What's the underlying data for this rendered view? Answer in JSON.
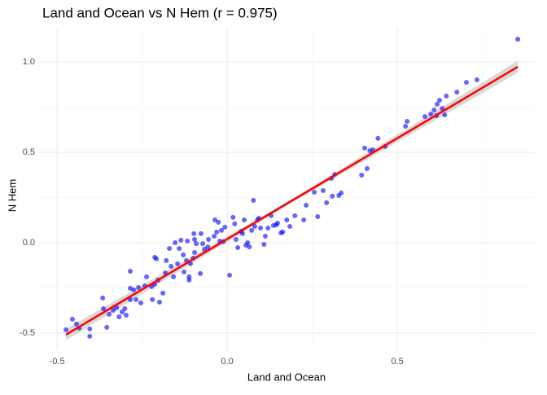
{
  "chart_data": {
    "type": "scatter",
    "title": "Land and Ocean vs N Hem (r = 0.975)",
    "x_label": "Land and Ocean",
    "y_label": "N Hem",
    "xlim": [
      -0.553,
      0.904
    ],
    "ylim": [
      -0.595,
      1.194
    ],
    "xticks": [
      -0.5,
      {
        "value": 0,
        "label": "0.0"
      },
      0.5
    ],
    "yticks": [
      -0.5,
      {
        "value": 0,
        "label": "0.0"
      },
      0.5,
      {
        "value": 1,
        "label": "1.0"
      }
    ],
    "xminor": [
      -0.25,
      0.25,
      0.75
    ],
    "yminor": [
      -0.25,
      0.25,
      0.75
    ],
    "grid": true,
    "color": "#0000ff",
    "x": [
      -0.474,
      -0.455,
      -0.443,
      -0.435,
      -0.404,
      -0.404,
      -0.366,
      -0.364,
      -0.354,
      -0.347,
      -0.335,
      -0.325,
      -0.318,
      -0.309,
      -0.301,
      -0.297,
      -0.285,
      -0.285,
      -0.285,
      -0.275,
      -0.268,
      -0.261,
      -0.254,
      -0.242,
      -0.237,
      -0.222,
      -0.22,
      -0.213,
      -0.213,
      -0.208,
      -0.203,
      -0.199,
      -0.189,
      -0.182,
      -0.179,
      -0.17,
      -0.165,
      -0.158,
      -0.153,
      -0.146,
      -0.141,
      -0.136,
      -0.129,
      -0.127,
      -0.12,
      -0.117,
      -0.112,
      -0.112,
      -0.108,
      -0.1,
      -0.098,
      -0.096,
      -0.096,
      -0.091,
      -0.079,
      -0.077,
      -0.072,
      -0.067,
      -0.057,
      -0.055,
      -0.038,
      -0.036,
      -0.031,
      -0.026,
      -0.022,
      -0.017,
      -0.012,
      -0.007,
      0.007,
      0.017,
      0.022,
      0.026,
      0.031,
      0.041,
      0.045,
      0.05,
      0.055,
      0.06,
      0.065,
      0.072,
      0.077,
      0.081,
      0.089,
      0.093,
      0.098,
      0.108,
      0.112,
      0.12,
      0.129,
      0.136,
      0.144,
      0.148,
      0.158,
      0.163,
      0.175,
      0.184,
      0.199,
      0.225,
      0.232,
      0.256,
      0.266,
      0.282,
      0.292,
      0.306,
      0.309,
      0.316,
      0.328,
      0.335,
      0.395,
      0.404,
      0.411,
      0.419,
      0.428,
      0.443,
      0.464,
      0.524,
      0.529,
      0.581,
      0.598,
      0.608,
      0.615,
      0.617,
      0.624,
      0.632,
      0.639,
      0.644,
      0.675,
      0.703,
      0.734,
      0.854
    ],
    "values": [
      -0.482,
      -0.423,
      -0.45,
      -0.473,
      -0.477,
      -0.518,
      -0.306,
      -0.365,
      -0.468,
      -0.396,
      -0.374,
      -0.36,
      -0.41,
      -0.383,
      -0.365,
      -0.401,
      -0.158,
      -0.252,
      -0.315,
      -0.261,
      -0.315,
      -0.248,
      -0.333,
      -0.239,
      -0.189,
      -0.243,
      -0.315,
      -0.23,
      -0.081,
      -0.09,
      -0.207,
      -0.329,
      -0.279,
      -0.167,
      -0.099,
      -0.032,
      -0.131,
      -0.189,
      0.0,
      -0.117,
      -0.032,
      0.014,
      -0.068,
      -0.162,
      -0.099,
      0.009,
      -0.207,
      -0.189,
      -0.117,
      -0.086,
      0.05,
      -0.054,
      0.018,
      -0.005,
      -0.171,
      0.05,
      -0.005,
      -0.036,
      -0.023,
      0.018,
      0.036,
      0.126,
      0.059,
      0.113,
      0.009,
      0.068,
      0.005,
      0.086,
      -0.18,
      0.14,
      0.104,
      0.018,
      -0.027,
      0.063,
      0.05,
      0.126,
      -0.014,
      0.0,
      -0.023,
      0.068,
      0.234,
      0.09,
      0.126,
      0.135,
      0.081,
      -0.009,
      0.036,
      0.081,
      0.149,
      0.095,
      0.099,
      0.108,
      0.054,
      0.059,
      0.126,
      0.09,
      0.149,
      0.126,
      0.207,
      0.279,
      0.144,
      0.288,
      0.221,
      0.356,
      0.257,
      0.378,
      0.261,
      0.275,
      0.374,
      0.523,
      0.41,
      0.509,
      0.514,
      0.577,
      0.532,
      0.644,
      0.671,
      0.698,
      0.712,
      0.734,
      0.703,
      0.766,
      0.788,
      0.743,
      0.707,
      0.811,
      0.833,
      0.887,
      0.901,
      1.126
    ],
    "fit": {
      "color": "#ff0000",
      "band_color": "#bebebe",
      "x": [
        -0.474,
        0.19,
        0.854
      ],
      "y": [
        -0.509,
        0.232,
        0.973
      ],
      "lower": [
        -0.54,
        0.222,
        0.94
      ],
      "upper": [
        -0.478,
        0.242,
        1.006
      ]
    }
  }
}
